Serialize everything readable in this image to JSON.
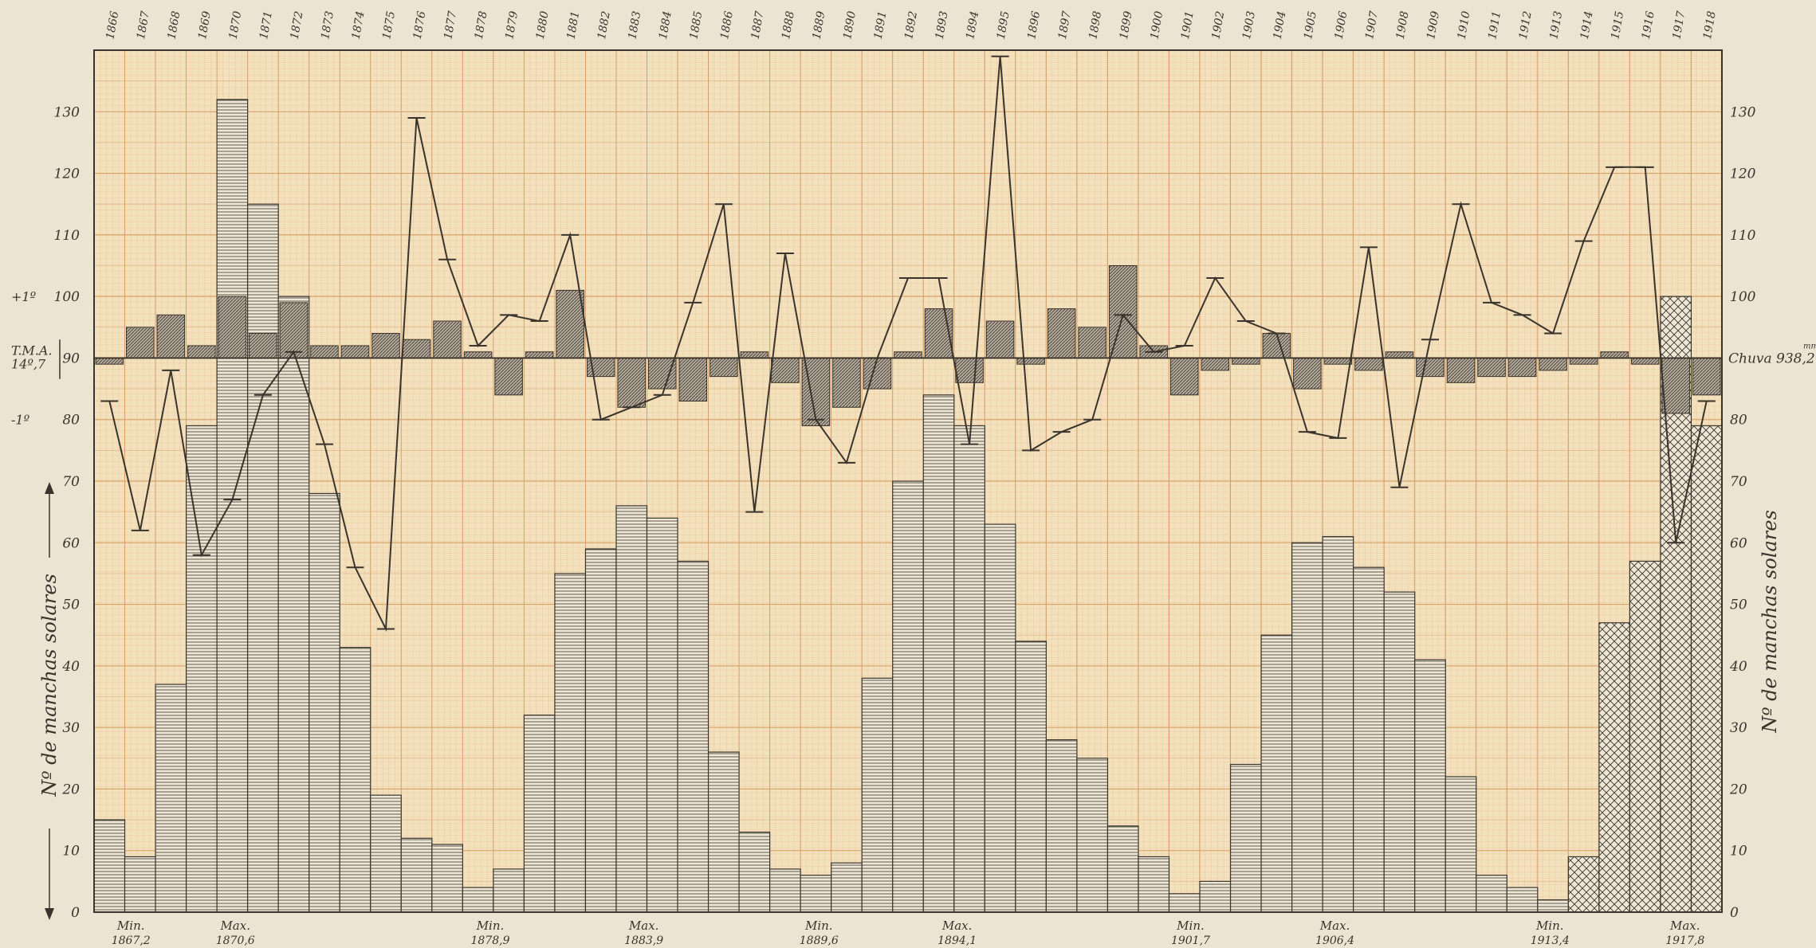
{
  "colors": {
    "paper": "#ece4d2",
    "plot_bg": "#f3e0bc",
    "grid_minor": "#e2b98a",
    "grid_major": "#d49a62",
    "ink": "#3a342c",
    "bar_fill": "#efe7d6",
    "anom_fill": "#b5ab9c"
  },
  "chart_data": {
    "type": "bar",
    "title": "",
    "ylabel_left": "Nº de manchas solares",
    "ylabel_right": "Nº de manchas solares",
    "ylim": [
      0,
      140
    ],
    "yticks": [
      0,
      10,
      20,
      30,
      40,
      50,
      60,
      70,
      80,
      90,
      100,
      110,
      120,
      130
    ],
    "yticks_left_labels": [
      "0",
      "10",
      "20",
      "30",
      "40",
      "50",
      "60",
      "70",
      "80",
      "90",
      "100",
      "110",
      "120",
      "130"
    ],
    "grid": true,
    "legend": "none",
    "x": [
      1866,
      1867,
      1868,
      1869,
      1870,
      1871,
      1872,
      1873,
      1874,
      1875,
      1876,
      1877,
      1878,
      1879,
      1880,
      1881,
      1882,
      1883,
      1884,
      1885,
      1886,
      1887,
      1888,
      1889,
      1890,
      1891,
      1892,
      1893,
      1894,
      1895,
      1896,
      1897,
      1898,
      1899,
      1900,
      1901,
      1902,
      1903,
      1904,
      1905,
      1906,
      1907,
      1908,
      1909,
      1910,
      1911,
      1912,
      1913,
      1914,
      1915,
      1916,
      1917,
      1918
    ],
    "series": [
      {
        "key": "sunspots",
        "type": "bar",
        "values": [
          15,
          9,
          37,
          79,
          132,
          115,
          100,
          68,
          43,
          19,
          12,
          11,
          4,
          7,
          32,
          55,
          59,
          66,
          64,
          57,
          26,
          13,
          7,
          6,
          8,
          38,
          70,
          84,
          79,
          63,
          44,
          28,
          25,
          14,
          9,
          3,
          5,
          24,
          45,
          60,
          61,
          56,
          52,
          41,
          22,
          6,
          4,
          2,
          9,
          47,
          57,
          100,
          79
        ],
        "pattern_from_index": 48
      },
      {
        "key": "temperature_anomaly",
        "type": "bar",
        "baseline": 90,
        "values": [
          89,
          95,
          97,
          92,
          100,
          94,
          99,
          92,
          92,
          94,
          93,
          96,
          91,
          84,
          91,
          101,
          87,
          82,
          85,
          83,
          87,
          91,
          86,
          79,
          82,
          85,
          91,
          98,
          86,
          96,
          89,
          98,
          95,
          105,
          92,
          84,
          88,
          89,
          94,
          85,
          89,
          88,
          91,
          87,
          86,
          87,
          87,
          88,
          89,
          91,
          89,
          81,
          84
        ]
      },
      {
        "key": "rainfall",
        "type": "line",
        "values": [
          83,
          62,
          88,
          58,
          67,
          84,
          91,
          76,
          56,
          46,
          129,
          106,
          92,
          97,
          96,
          110,
          80,
          82,
          84,
          99,
          115,
          65,
          107,
          80,
          73,
          90,
          103,
          103,
          76,
          139,
          75,
          78,
          80,
          97,
          91,
          92,
          103,
          96,
          94,
          78,
          77,
          108,
          69,
          93,
          115,
          99,
          97,
          94,
          109,
          121,
          121,
          60,
          83
        ]
      }
    ],
    "reference_line": {
      "value": 90
    },
    "left_annotations": [
      {
        "label": "+1º",
        "value": 100
      },
      {
        "label": "T.M.A.",
        "value": 91.3
      },
      {
        "label": "14º,7",
        "value": 89.1
      },
      {
        "label": "-1º",
        "value": 80
      }
    ],
    "right_annotation": {
      "label": "Chuva 938,2",
      "unit": "mm",
      "value": 90
    },
    "extrema_annotations": [
      {
        "kind": "Min.",
        "value": "1867,2",
        "x": 1867.2
      },
      {
        "kind": "Max.",
        "value": "1870,6",
        "x": 1870.6
      },
      {
        "kind": "Min.",
        "value": "1878,9",
        "x": 1878.9
      },
      {
        "kind": "Max.",
        "value": "1883,9",
        "x": 1883.9
      },
      {
        "kind": "Min.",
        "value": "1889,6",
        "x": 1889.6
      },
      {
        "kind": "Max.",
        "value": "1894,1",
        "x": 1894.1
      },
      {
        "kind": "Min.",
        "value": "1901,7",
        "x": 1901.7
      },
      {
        "kind": "Max.",
        "value": "1906,4",
        "x": 1906.4
      },
      {
        "kind": "Min.",
        "value": "1913,4",
        "x": 1913.4
      },
      {
        "kind": "Max.",
        "value": "1917,8",
        "x": 1917.8
      }
    ]
  }
}
